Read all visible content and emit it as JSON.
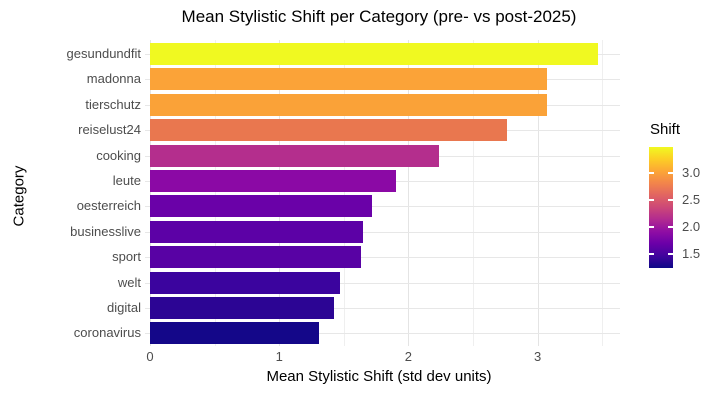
{
  "chart_data": {
    "type": "bar",
    "orientation": "horizontal",
    "title": "Mean Stylistic Shift per Category (pre- vs post-2025)",
    "xlabel": "Mean Stylistic Shift (std dev units)",
    "ylabel": "Category",
    "categories": [
      "gesundundfit",
      "madonna",
      "tierschutz",
      "reiselust24",
      "cooking",
      "leute",
      "oesterreich",
      "businesslive",
      "sport",
      "welt",
      "digital",
      "coronavirus"
    ],
    "values": [
      3.47,
      3.07,
      3.07,
      2.76,
      2.24,
      1.9,
      1.72,
      1.65,
      1.63,
      1.47,
      1.42,
      1.31
    ],
    "bar_colors": [
      "#F0F921",
      "#FBA338",
      "#FAA238",
      "#E9774F",
      "#B42E8D",
      "#8B09A5",
      "#6A01A8",
      "#5C01A6",
      "#5802A4",
      "#3B049E",
      "#2C0594",
      "#140789"
    ],
    "colormap": "plasma",
    "grid": true,
    "background": "#ffffff",
    "xlim": [
      0,
      3.65
    ],
    "x_tick_labels": [
      "0",
      "1",
      "2",
      "3"
    ],
    "x_tick_values": [
      0,
      1,
      2,
      3
    ],
    "x_minor_tick_values": [
      0.5,
      1.5,
      2.5,
      3.5
    ],
    "legend": {
      "title": "Shift",
      "position": "right",
      "tick_labels": [
        "3.0",
        "2.5",
        "2.0",
        "1.5"
      ],
      "tick_values": [
        3.0,
        2.5,
        2.0,
        1.5
      ],
      "domain": [
        1.24,
        3.48
      ],
      "gradient_top_to_bottom": [
        "#f0f921",
        "#fcce25",
        "#fca636",
        "#f2844b",
        "#e16462",
        "#cc4778",
        "#b12a90",
        "#8f0da4",
        "#6a00a8",
        "#41049d",
        "#0d0887"
      ]
    }
  }
}
